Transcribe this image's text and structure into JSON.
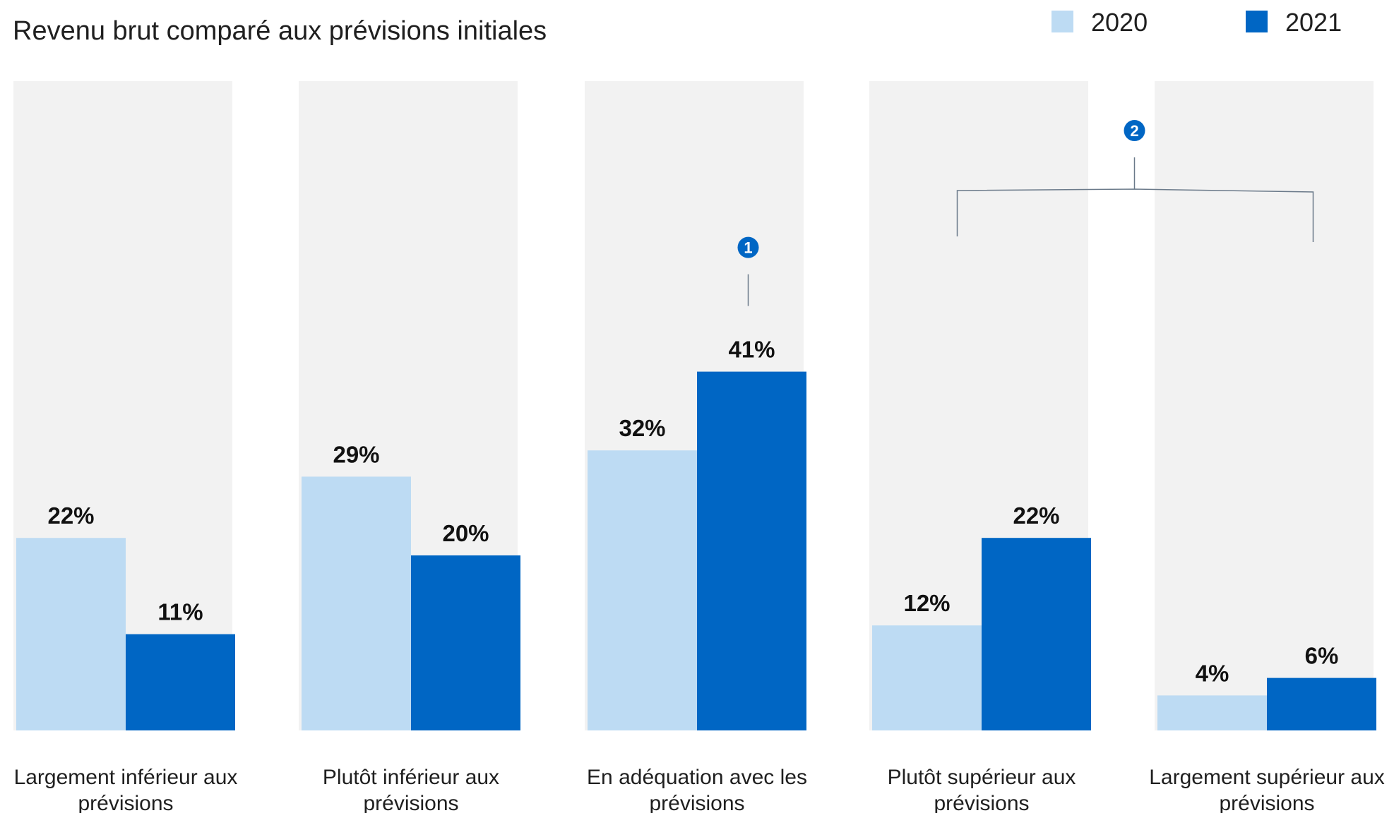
{
  "chart_data": {
    "type": "bar",
    "title": "Revenu brut comparé aux prévisions initiales",
    "categories": [
      [
        "Largement inférieur aux",
        "prévisions"
      ],
      [
        "Plutôt inférieur aux",
        "prévisions"
      ],
      [
        "En adéquation avec les",
        "prévisions"
      ],
      [
        "Plutôt supérieur aux",
        "prévisions"
      ],
      [
        "Largement supérieur aux",
        "prévisions"
      ]
    ],
    "series": [
      {
        "name": "2020",
        "values": [
          22,
          29,
          32,
          12,
          4
        ],
        "labels": [
          "22%",
          "29%",
          "32%",
          "12%",
          "4%"
        ],
        "color": "#bddbf3"
      },
      {
        "name": "2021",
        "values": [
          11,
          20,
          41,
          22,
          6
        ],
        "labels": [
          "11%",
          "20%",
          "41%",
          "22%",
          "6%"
        ],
        "color": "#0066c4"
      }
    ],
    "ylim": [
      0,
      54
    ],
    "legend_position": "top-right",
    "column_background_color": "#f2f2f2",
    "annotations": [
      {
        "label": "1",
        "categories": [
          2
        ],
        "series": "2021"
      },
      {
        "label": "2",
        "categories": [
          3,
          4
        ],
        "series": "2021"
      }
    ],
    "annotation_color": "#0066c4",
    "annotation_line_color": "#6b7a8a"
  }
}
